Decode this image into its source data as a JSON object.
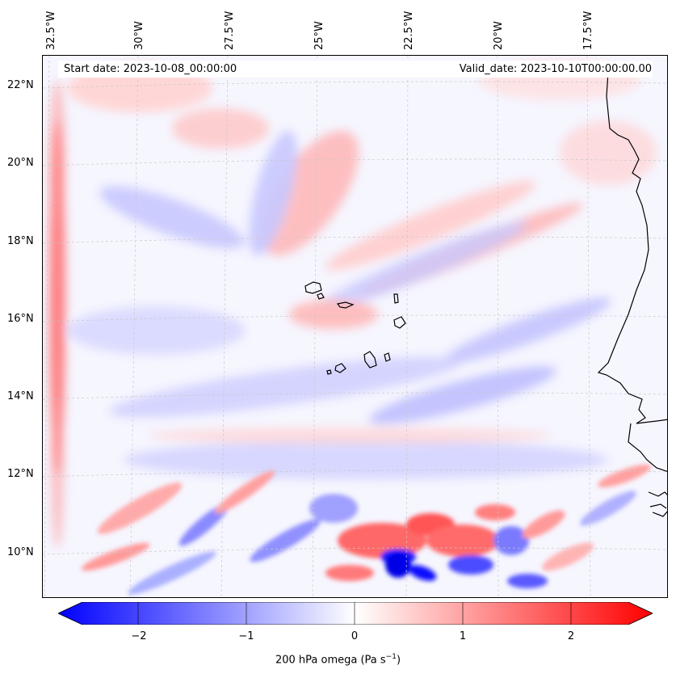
{
  "header": {
    "start_date": "Start date: 2023-10-08_00:00:00",
    "valid_date": "Valid_date: 2023-10-10T00:00:00.00"
  },
  "axes": {
    "lon_labels": [
      "32.5°W",
      "30°W",
      "27.5°W",
      "25°W",
      "22.5°W",
      "20°W",
      "17.5°W"
    ],
    "lat_labels": [
      "22°N",
      "20°N",
      "18°N",
      "16°N",
      "14°N",
      "12°N",
      "10°N"
    ]
  },
  "colorbar": {
    "label_prefix": "200 hPa omega (Pa s",
    "label_exponent": "−1",
    "label_suffix": ")",
    "tick_labels": [
      "−2",
      "−1",
      "0",
      "1",
      "2"
    ],
    "min": -2.5,
    "max": 2.5,
    "colors": {
      "negative": "#0000ff",
      "zero": "#ffffff",
      "positive": "#ff0000"
    }
  },
  "map": {
    "lon_range": [
      -32.75,
      -15.5
    ],
    "lat_range": [
      8.9,
      22.75
    ],
    "projection": "rotated lat-lon",
    "coastline_color": "#000000",
    "gridline_color": "#c8c8c8"
  }
}
